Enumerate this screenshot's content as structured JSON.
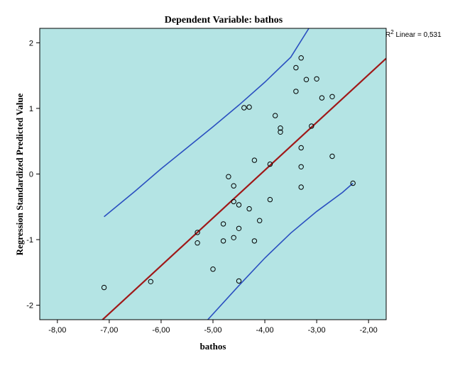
{
  "chart_data": {
    "type": "scatter",
    "title": "Dependent Variable: bathos",
    "xlabel": "bathos",
    "ylabel": "Regression Standardized Predicted Value",
    "xlim": [
      -8.34,
      -1.66
    ],
    "ylim": [
      -2.22,
      2.22
    ],
    "xticks": [
      -8,
      -7,
      -6,
      -5,
      -4,
      -3,
      -2
    ],
    "xtick_labels": [
      "-8,00",
      "-7,00",
      "-6,00",
      "-5,00",
      "-4,00",
      "-3,00",
      "-2,00"
    ],
    "yticks": [
      -2,
      -1,
      0,
      1,
      2
    ],
    "ytick_labels": [
      "-2",
      "-1",
      "0",
      "1",
      "2"
    ],
    "grid": false,
    "background": "#b4e4e4",
    "r2_text": {
      "prefix": "R",
      "sup": "2",
      "suffix": " Linear = 0,531"
    },
    "points": [
      [
        -7.1,
        -1.73
      ],
      [
        -6.2,
        -1.64
      ],
      [
        -5.3,
        -0.89
      ],
      [
        -5.3,
        -1.05
      ],
      [
        -5.0,
        -1.45
      ],
      [
        -4.8,
        -0.76
      ],
      [
        -4.8,
        -1.02
      ],
      [
        -4.7,
        -0.04
      ],
      [
        -4.6,
        -0.18
      ],
      [
        -4.6,
        -0.42
      ],
      [
        -4.6,
        -0.97
      ],
      [
        -4.5,
        -0.47
      ],
      [
        -4.5,
        -0.83
      ],
      [
        -4.5,
        -1.63
      ],
      [
        -4.4,
        1.01
      ],
      [
        -4.3,
        1.02
      ],
      [
        -4.3,
        -0.53
      ],
      [
        -4.2,
        0.21
      ],
      [
        -4.2,
        -1.02
      ],
      [
        -4.1,
        -0.71
      ],
      [
        -3.9,
        0.15
      ],
      [
        -3.9,
        -0.39
      ],
      [
        -3.8,
        0.89
      ],
      [
        -3.7,
        0.7
      ],
      [
        -3.7,
        0.64
      ],
      [
        -3.4,
        1.62
      ],
      [
        -3.4,
        1.26
      ],
      [
        -3.3,
        1.77
      ],
      [
        -3.3,
        0.4
      ],
      [
        -3.3,
        0.11
      ],
      [
        -3.3,
        -0.2
      ],
      [
        -3.2,
        1.44
      ],
      [
        -3.1,
        0.73
      ],
      [
        -3.0,
        1.45
      ],
      [
        -2.9,
        1.16
      ],
      [
        -2.7,
        1.18
      ],
      [
        -2.7,
        0.27
      ],
      [
        -2.3,
        -0.14
      ]
    ],
    "fit_line": {
      "slope": 0.728,
      "intercept": 2.97,
      "color": "#a01818"
    },
    "ci_line_color": "#2a4fc0",
    "ci_upper": [
      [
        -7.1,
        -0.65
      ],
      [
        -6.5,
        -0.26
      ],
      [
        -6.0,
        0.08
      ],
      [
        -5.5,
        0.4
      ],
      [
        -5.0,
        0.72
      ],
      [
        -4.5,
        1.05
      ],
      [
        -4.0,
        1.4
      ],
      [
        -3.5,
        1.78
      ],
      [
        -3.15,
        2.22
      ]
    ],
    "ci_lower": [
      [
        -5.1,
        -2.22
      ],
      [
        -4.5,
        -1.7
      ],
      [
        -4.0,
        -1.28
      ],
      [
        -3.5,
        -0.9
      ],
      [
        -3.0,
        -0.57
      ],
      [
        -2.5,
        -0.28
      ],
      [
        -2.3,
        -0.14
      ]
    ]
  }
}
